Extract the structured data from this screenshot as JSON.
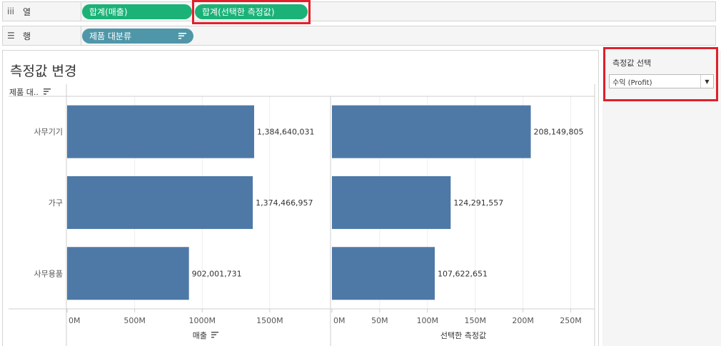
{
  "shelves": {
    "columns": {
      "label": "열",
      "icon": "columns-icon",
      "pills": [
        "합계(매출)",
        "합계(선택한 측정값)"
      ]
    },
    "rows": {
      "label": "행",
      "icon": "rows-icon",
      "pills": [
        "제품 대분류"
      ]
    }
  },
  "sheet": {
    "title": "측정값 변경",
    "row_header": "제품 대.."
  },
  "parameter": {
    "title": "측정값 선택",
    "selected": "수익 (Profit)"
  },
  "colors": {
    "bar": "#4e79a7",
    "pill_green": "#1bb277",
    "pill_blue": "#4f97a8",
    "highlight": "#e0202a"
  },
  "chart_data": {
    "type": "bar",
    "orientation": "horizontal",
    "categories": [
      "사무기기",
      "가구",
      "사무용품"
    ],
    "panes": [
      {
        "name": "매출",
        "xlabel": "매출",
        "values": [
          1384640031,
          1374466957,
          902001731
        ],
        "labels": [
          "1,384,640,031",
          "1,374,466,957",
          "902,001,731"
        ],
        "xlim": [
          0,
          1950000000
        ],
        "ticks": [
          0,
          500000000,
          1000000000,
          1500000000
        ],
        "tick_labels": [
          "0M",
          "500M",
          "1000M",
          "1500M"
        ]
      },
      {
        "name": "선택한 측정값",
        "xlabel": "선택한 측정값",
        "values": [
          208149805,
          124291557,
          107622651
        ],
        "labels": [
          "208,149,805",
          "124,291,557",
          "107,622,651"
        ],
        "xlim": [
          0,
          275000000
        ],
        "ticks": [
          0,
          50000000,
          100000000,
          150000000,
          200000000,
          250000000
        ],
        "tick_labels": [
          "0M",
          "50M",
          "100M",
          "150M",
          "200M",
          "250M"
        ]
      }
    ],
    "grid": true
  }
}
